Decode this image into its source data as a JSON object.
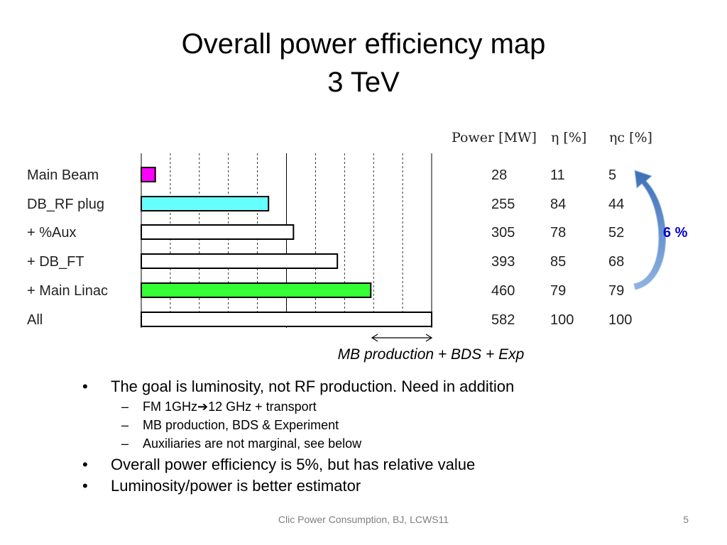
{
  "slide": {
    "title_line1": "Overall power efficiency map",
    "title_line2": "3 TeV",
    "footer": "Clic Power Consumption, BJ,  LCWS11",
    "page_number": "5"
  },
  "chart_data": {
    "type": "bar",
    "orientation": "horizontal",
    "categories": [
      "Main Beam",
      "DB_RF plug",
      "+  %Aux",
      "+  DB_FT",
      "+  Main Linac",
      "All"
    ],
    "values": [
      28,
      255,
      305,
      393,
      460,
      582
    ],
    "bar_colors": [
      "#ff00ff",
      "#66ffff",
      "#ffffff",
      "#ffffff",
      "#33ff33",
      "#ffffff"
    ],
    "xlim": [
      0,
      582
    ],
    "grid": "vertical dashed",
    "table": {
      "headers": {
        "power": "Power [MW]",
        "eta": "η [%]",
        "eta_c": "ηc [%]"
      },
      "power": [
        "28",
        "255",
        "305",
        "393",
        "460",
        "582"
      ],
      "eta": [
        "11",
        "84",
        "78",
        "85",
        "79",
        "100"
      ],
      "eta_c": [
        "5",
        "44",
        "52",
        "68",
        "79",
        "100"
      ]
    },
    "annotation_range_label": "MB production + BDS + Exp",
    "arrow_label": "6 %"
  },
  "bullets": [
    {
      "text": "The goal is luminosity, not RF production. Need in addition",
      "sub": [
        "FM 1GHz➔12 GHz + transport",
        "MB production, BDS & Experiment",
        "Auxiliaries are not marginal, see below"
      ]
    },
    {
      "text": "Overall power efficiency is 5%, but has relative value",
      "sub": []
    },
    {
      "text": "Luminosity/power is better estimator",
      "sub": []
    }
  ],
  "colors": {
    "arrow": "#4a7ebf",
    "arrow_label": "#0000cc"
  }
}
